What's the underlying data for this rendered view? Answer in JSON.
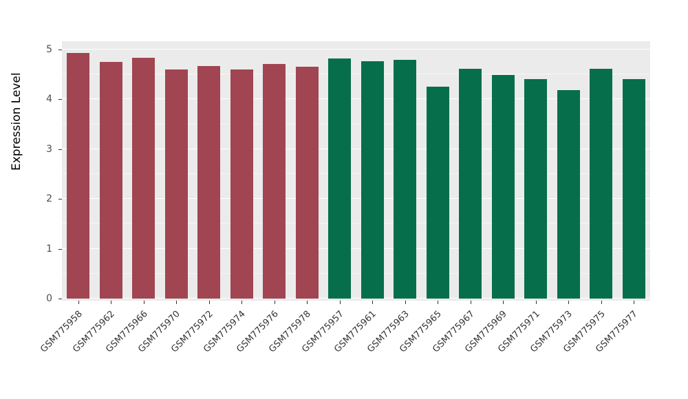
{
  "figure": {
    "background": "#FFFFFF",
    "panel_background": "#EBEBEB",
    "grid_color": "#FFFFFF",
    "axis_text_color": "#4D4D4D",
    "ylabel": "Expression Level"
  },
  "chart_data": {
    "type": "bar",
    "title": "",
    "xlabel": "",
    "ylabel": "Expression Level",
    "ylim": [
      0,
      5.2
    ],
    "y_ticks": [
      0,
      1,
      2,
      3,
      4,
      5
    ],
    "grid": true,
    "legend": "none",
    "categories": [
      "GSM775958",
      "GSM775962",
      "GSM775966",
      "GSM775970",
      "GSM775972",
      "GSM775974",
      "GSM775976",
      "GSM775978",
      "GSM775957",
      "GSM775961",
      "GSM775963",
      "GSM775965",
      "GSM775967",
      "GSM775969",
      "GSM775971",
      "GSM775973",
      "GSM775975",
      "GSM775977"
    ],
    "values": [
      4.93,
      4.75,
      4.84,
      4.6,
      4.67,
      4.6,
      4.71,
      4.65,
      4.82,
      4.77,
      4.79,
      4.25,
      4.61,
      4.49,
      4.41,
      4.18,
      4.62,
      4.4
    ],
    "group_colors": {
      "left_group": "#A04551",
      "right_group": "#066E4B"
    },
    "bar_colors": [
      "#A04551",
      "#A04551",
      "#A04551",
      "#A04551",
      "#A04551",
      "#A04551",
      "#A04551",
      "#A04551",
      "#066E4B",
      "#066E4B",
      "#066E4B",
      "#066E4B",
      "#066E4B",
      "#066E4B",
      "#066E4B",
      "#066E4B",
      "#066E4B",
      "#066E4B"
    ]
  }
}
